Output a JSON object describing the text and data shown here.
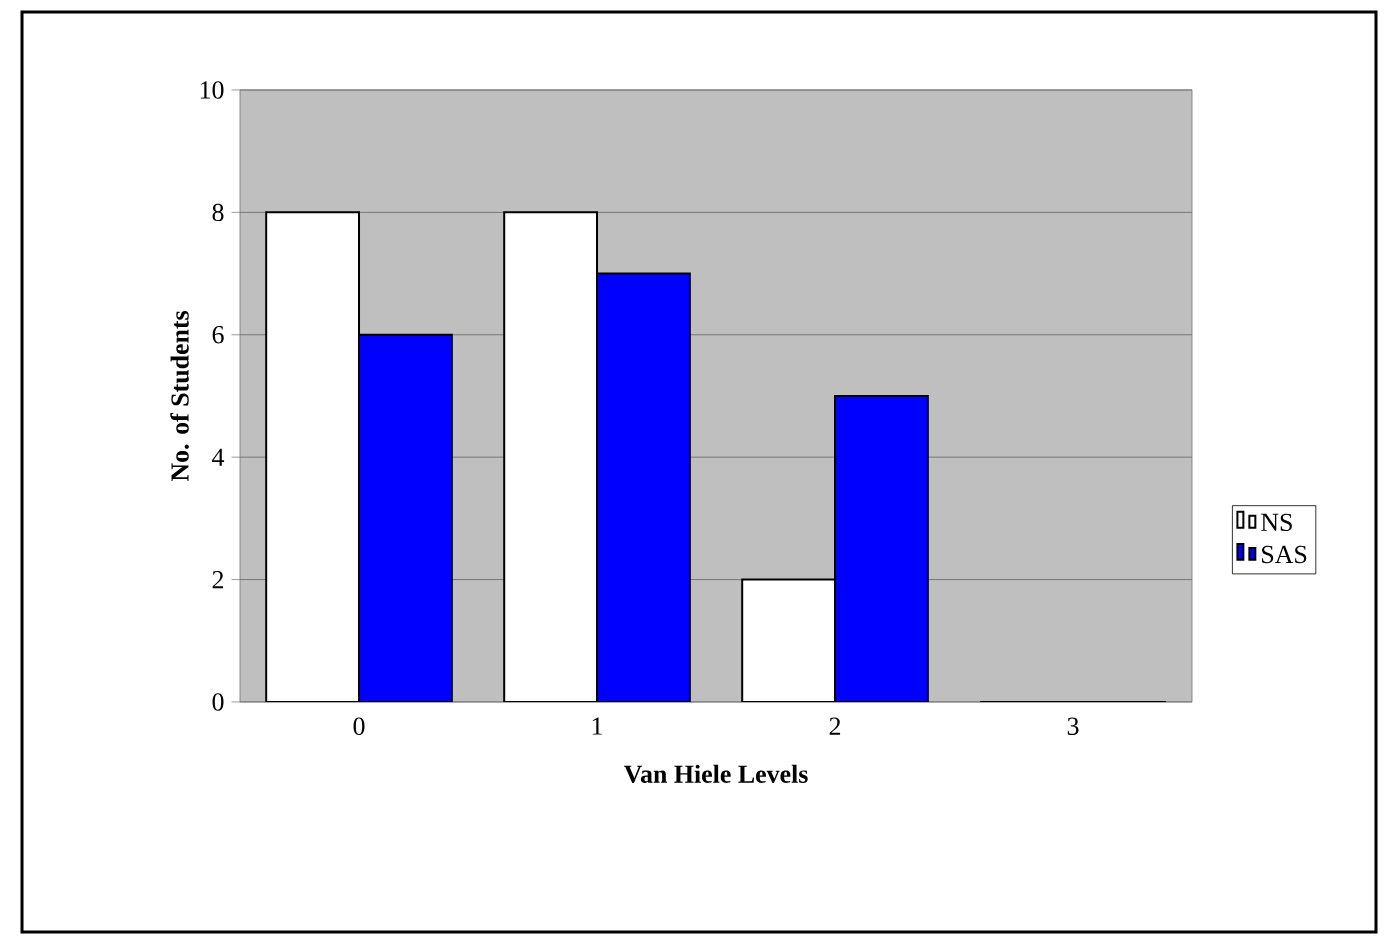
{
  "chart_data": {
    "type": "bar",
    "xlabel": "Van Hiele Levels",
    "ylabel": "No. of Students",
    "categories": [
      "0",
      "1",
      "2",
      "3"
    ],
    "series": [
      {
        "name": "NS",
        "color": "#ffffff",
        "values": [
          8,
          8,
          2,
          0
        ]
      },
      {
        "name": "SAS",
        "color": "#0000ff",
        "values": [
          6,
          7,
          5,
          0
        ]
      }
    ],
    "ylim": [
      0,
      10
    ],
    "yticks": [
      0,
      2,
      4,
      6,
      8,
      10
    ],
    "grid": "y",
    "legend": "right"
  }
}
